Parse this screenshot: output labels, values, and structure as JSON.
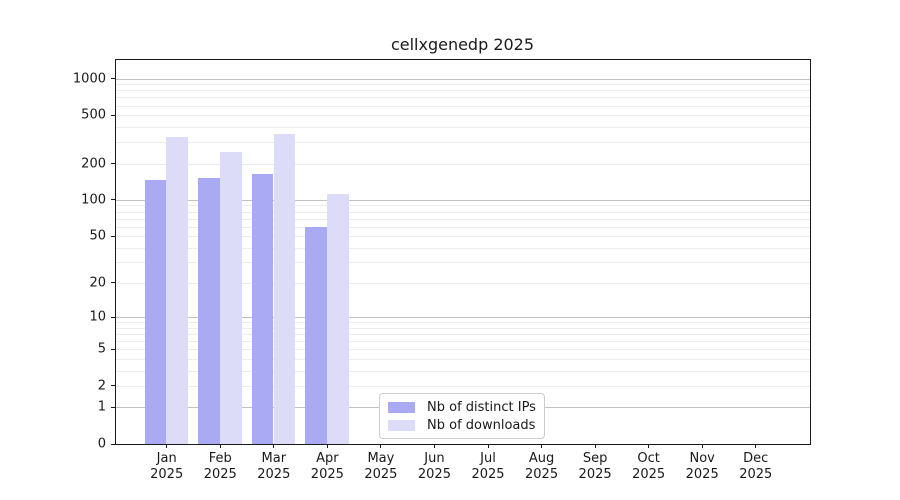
{
  "chart_data": {
    "type": "bar",
    "title": "cellxgenedp 2025",
    "x_categories": [
      "Jan",
      "Feb",
      "Mar",
      "Apr",
      "May",
      "Jun",
      "Jul",
      "Aug",
      "Sep",
      "Oct",
      "Nov",
      "Dec"
    ],
    "x_year": "2025",
    "yscale": "log10(value+1)",
    "yticks": [
      0,
      1,
      2,
      5,
      10,
      20,
      50,
      100,
      200,
      500,
      1000
    ],
    "ylim": [
      0,
      1450
    ],
    "grid": true,
    "legend_position": "inside-bottom-center",
    "series": [
      {
        "name": "Nb of distinct IPs",
        "color": "#a9a9f4",
        "values": [
          145,
          153,
          165,
          60,
          0,
          0,
          0,
          0,
          0,
          0,
          0,
          0
        ]
      },
      {
        "name": "Nb of downloads",
        "color": "#dcdcf8",
        "values": [
          330,
          250,
          350,
          113,
          0,
          0,
          0,
          0,
          0,
          0,
          0,
          0
        ]
      }
    ]
  }
}
